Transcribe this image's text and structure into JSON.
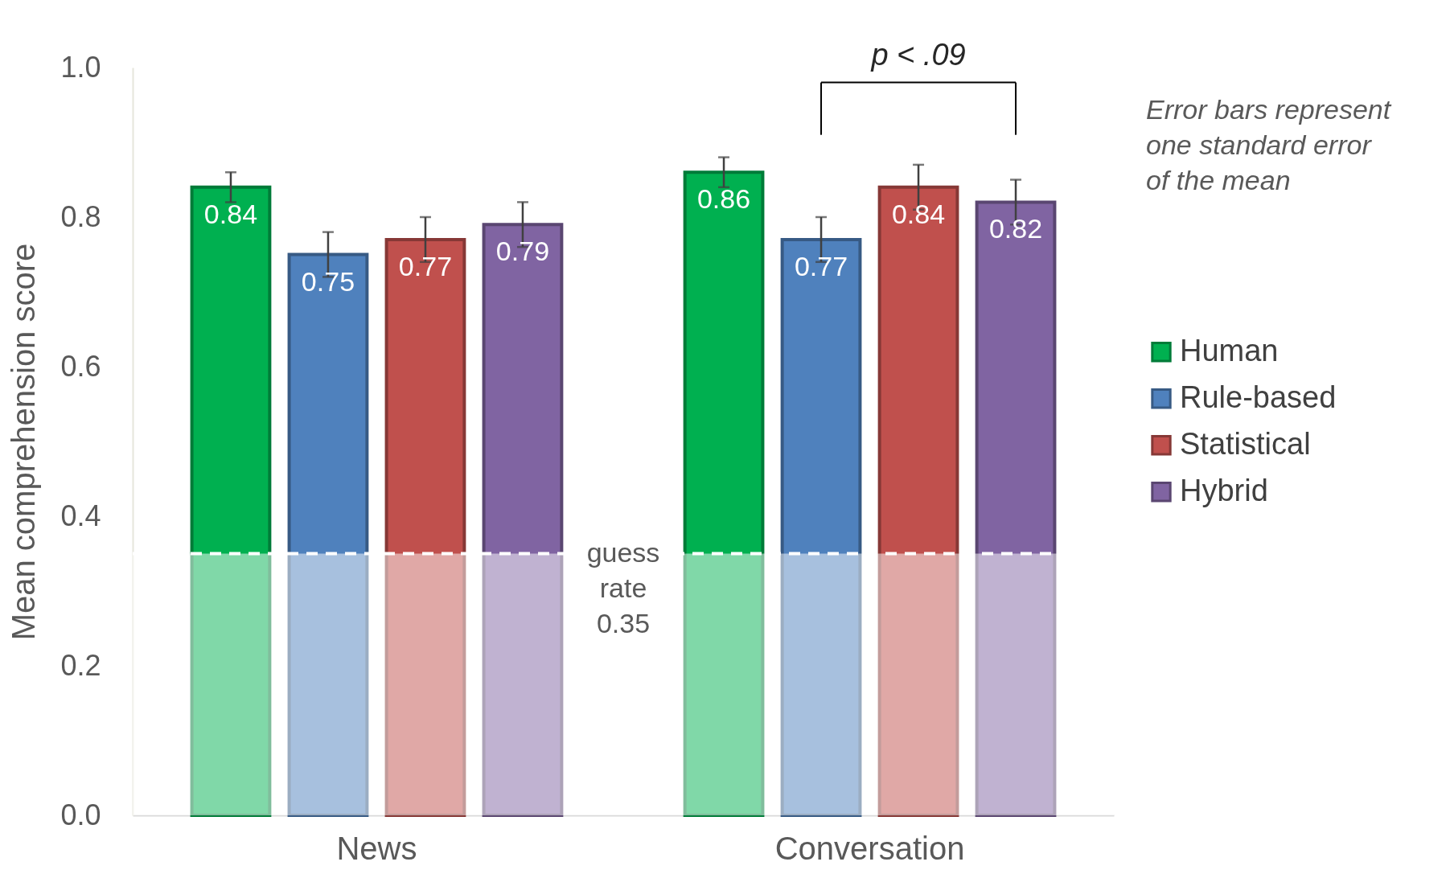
{
  "chart_data": {
    "type": "bar",
    "ylabel": "Mean comprehension score",
    "categories": [
      "News",
      "Conversation"
    ],
    "series": [
      {
        "name": "Human",
        "color": "#00b050",
        "values": [
          0.84,
          0.86
        ],
        "errors": [
          0.02,
          0.02
        ]
      },
      {
        "name": "Rule-based",
        "color": "#4f81bd",
        "values": [
          0.75,
          0.77
        ],
        "errors": [
          0.03,
          0.03
        ]
      },
      {
        "name": "Statistical",
        "color": "#c0504d",
        "values": [
          0.77,
          0.84
        ],
        "errors": [
          0.03,
          0.03
        ]
      },
      {
        "name": "Hybrid",
        "color": "#8064a2",
        "values": [
          0.79,
          0.82
        ],
        "errors": [
          0.03,
          0.03
        ]
      }
    ],
    "ylim": [
      0,
      1
    ],
    "yticks": [
      {
        "value": 0,
        "label": "0.0"
      },
      0.2,
      0.4,
      0.6,
      0.8,
      {
        "value": 1,
        "label": "1.0"
      }
    ],
    "data_labels": true,
    "legend": "right",
    "grid": false,
    "bands": [
      {
        "axis": "y",
        "from": 0,
        "to": 0.35,
        "label": "guess rate 0.35",
        "color": "#ffffff"
      }
    ],
    "ref_lines": [
      {
        "axis": "y",
        "value": 0.35,
        "color": "#ffffff",
        "line_style": "dashed"
      }
    ],
    "annotations": [
      "p < .09",
      "Error bars represent one standard error of the mean"
    ]
  }
}
